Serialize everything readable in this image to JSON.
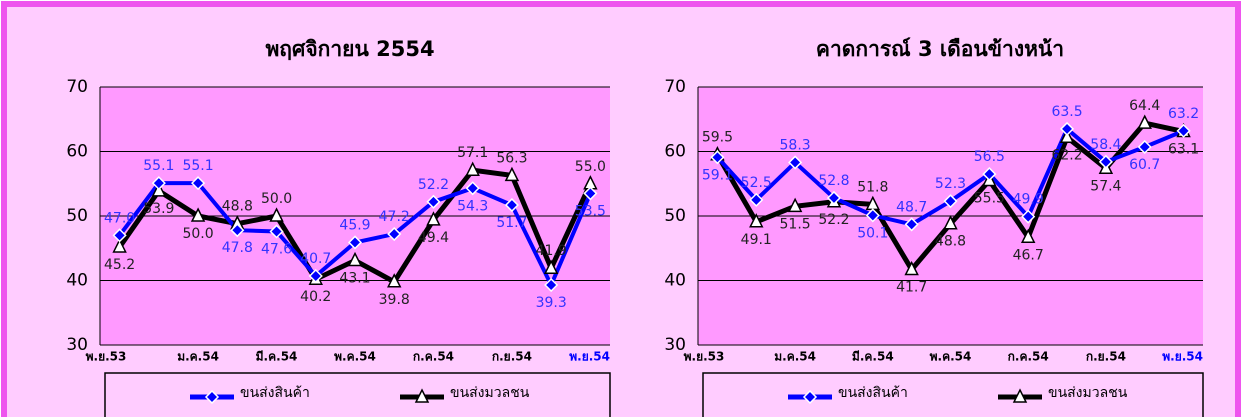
{
  "chart_data": [
    {
      "type": "line",
      "title": "พฤศจิกายน 2554",
      "categories": [
        "พ.ย.53",
        null,
        "ม.ค.54",
        null,
        "มี.ค.54",
        null,
        "พ.ค.54",
        null,
        "ก.ค.54",
        null,
        "ก.ย.54",
        null,
        "พ.ย.54"
      ],
      "series": [
        {
          "name": "ขนส่งสินค้า",
          "color": "#0000ff",
          "values": [
            47.0,
            55.1,
            55.1,
            47.8,
            47.6,
            40.7,
            45.9,
            47.2,
            52.2,
            54.3,
            51.7,
            39.3,
            53.5
          ],
          "value_labels": [
            "47.0",
            "55.1",
            "55.1",
            "47.8",
            "47.6",
            "40.7",
            "45.9",
            "47.2",
            "52.2",
            "54.3",
            "51.7",
            "39.3",
            "53.5"
          ]
        },
        {
          "name": "ขนส่งมวลชน",
          "color": "#000000",
          "values": [
            45.2,
            53.9,
            50.0,
            48.8,
            50.0,
            40.2,
            43.1,
            39.8,
            49.4,
            57.1,
            56.3,
            41.9,
            55.0
          ],
          "value_labels": [
            "45.2",
            "53.9",
            "50.0",
            "48.8",
            "50.0",
            "40.2",
            "43.1",
            "39.8",
            "49.4",
            "57.1",
            "56.3",
            "41.9",
            "55.0"
          ]
        }
      ],
      "ylim": [
        30,
        70
      ],
      "yticks": [
        30,
        40,
        50,
        60,
        70
      ],
      "grid": true
    },
    {
      "type": "line",
      "title": "คาดการณ์ 3 เดือนข้างหน้า",
      "categories": [
        "พ.ย.53",
        null,
        "ม.ค.54",
        null,
        "มี.ค.54",
        null,
        "พ.ค.54",
        null,
        "ก.ค.54",
        null,
        "ก.ย.54",
        null,
        "พ.ย.54"
      ],
      "series": [
        {
          "name": "ขนส่งสินค้า",
          "color": "#0000ff",
          "values": [
            59.1,
            52.5,
            58.3,
            52.8,
            50.1,
            48.7,
            52.3,
            56.5,
            49.9,
            63.5,
            58.4,
            60.7,
            63.2
          ],
          "value_labels": [
            "59.1",
            "52.5",
            "58.3",
            "52.8",
            "50.1",
            "48.7",
            "52.3",
            "56.5",
            "49.9",
            "63.5",
            "58.4",
            "60.7",
            "63.2"
          ]
        },
        {
          "name": "ขนส่งมวลชน",
          "color": "#000000",
          "values": [
            59.5,
            49.1,
            51.5,
            52.2,
            51.8,
            41.7,
            48.8,
            55.5,
            46.7,
            62.2,
            57.4,
            64.4,
            63.1
          ],
          "value_labels": [
            "59.5",
            "49.1",
            "51.5",
            "52.2",
            "51.8",
            "41.7",
            "48.8",
            "55.5",
            "46.7",
            "62.2",
            "57.4",
            "64.4",
            "63.1"
          ]
        }
      ],
      "ylim": [
        30,
        70
      ],
      "yticks": [
        30,
        40,
        50,
        60,
        70
      ],
      "grid": true
    }
  ]
}
